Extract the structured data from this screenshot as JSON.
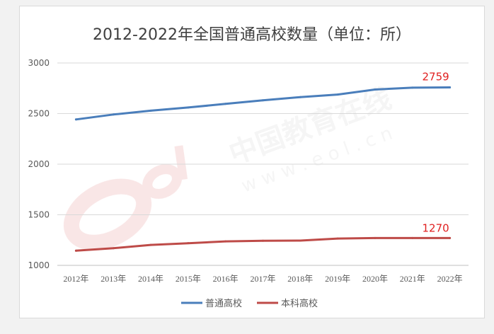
{
  "chart_data": {
    "type": "line",
    "title": "2012-2022年全国普通高校数量（单位：所）",
    "xlabel": "",
    "ylabel": "",
    "categories": [
      "2012年",
      "2013年",
      "2014年",
      "2015年",
      "2016年",
      "2017年",
      "2018年",
      "2019年",
      "2020年",
      "2021年",
      "2022年"
    ],
    "ylim": [
      1000,
      3000
    ],
    "yticks": [
      1000,
      1500,
      2000,
      2500,
      3000
    ],
    "grid": true,
    "legend": "bottom",
    "series": [
      {
        "name": "普通高校",
        "color": "#4a7ebb",
        "values": [
          2442,
          2491,
          2529,
          2560,
          2596,
          2631,
          2663,
          2688,
          2738,
          2756,
          2759
        ],
        "end_label": "2759"
      },
      {
        "name": "本科高校",
        "color": "#be4b48",
        "values": [
          1145,
          1170,
          1202,
          1219,
          1237,
          1243,
          1245,
          1265,
          1270,
          1270,
          1270
        ],
        "end_label": "1270"
      }
    ],
    "label_color": "#e02020"
  },
  "watermark": {
    "text_cn": "中国教育在线",
    "text_url": "w w w . e o l . c n",
    "logo": "eol"
  }
}
